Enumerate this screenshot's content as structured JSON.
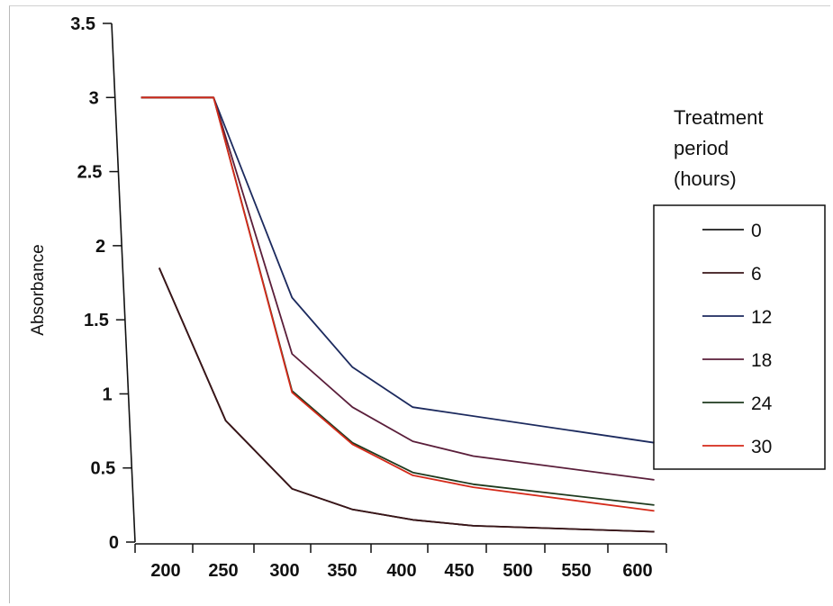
{
  "chart_data": {
    "type": "line",
    "title": "",
    "xlabel": "",
    "ylabel": "Absorbance",
    "xlim": [
      170,
      610
    ],
    "ylim": [
      0,
      3.5
    ],
    "xticks": [
      "200",
      "250",
      "300",
      "350",
      "400",
      "450",
      "500",
      "550",
      "600"
    ],
    "yticks": [
      "0",
      "0.5",
      "1",
      "1.5",
      "2",
      "2.5",
      "3",
      "3.5"
    ],
    "grid": false,
    "legend": {
      "title": "Treatment period (hours)",
      "title_lines": [
        "Treatment",
        "period",
        "(hours)"
      ],
      "placement": "right"
    },
    "series": [
      {
        "name": "0",
        "color": "#1a1a1a",
        "x": [
          190,
          245,
          300,
          350,
          400,
          450,
          600
        ],
        "y": [
          1.85,
          0.82,
          0.36,
          0.22,
          0.15,
          0.11,
          0.07
        ]
      },
      {
        "name": "6",
        "color": "#3a1518",
        "x": [
          190,
          245,
          300,
          350,
          400,
          450,
          600
        ],
        "y": [
          1.85,
          0.82,
          0.36,
          0.22,
          0.15,
          0.11,
          0.07
        ]
      },
      {
        "name": "12",
        "color": "#1c2a5e",
        "x": [
          175,
          235,
          300,
          350,
          400,
          600
        ],
        "y": [
          3.0,
          3.0,
          1.65,
          1.18,
          0.91,
          0.67
        ]
      },
      {
        "name": "18",
        "color": "#5a1e3a",
        "x": [
          175,
          235,
          300,
          350,
          400,
          450,
          600
        ],
        "y": [
          3.0,
          3.0,
          1.27,
          0.91,
          0.68,
          0.58,
          0.42
        ]
      },
      {
        "name": "24",
        "color": "#1e3a1e",
        "x": [
          175,
          235,
          300,
          350,
          400,
          450,
          600
        ],
        "y": [
          3.0,
          3.0,
          1.02,
          0.67,
          0.47,
          0.39,
          0.25
        ]
      },
      {
        "name": "30",
        "color": "#d42a1a",
        "x": [
          175,
          235,
          300,
          350,
          400,
          450,
          600
        ],
        "y": [
          3.0,
          3.0,
          1.01,
          0.66,
          0.45,
          0.37,
          0.21
        ]
      }
    ]
  }
}
